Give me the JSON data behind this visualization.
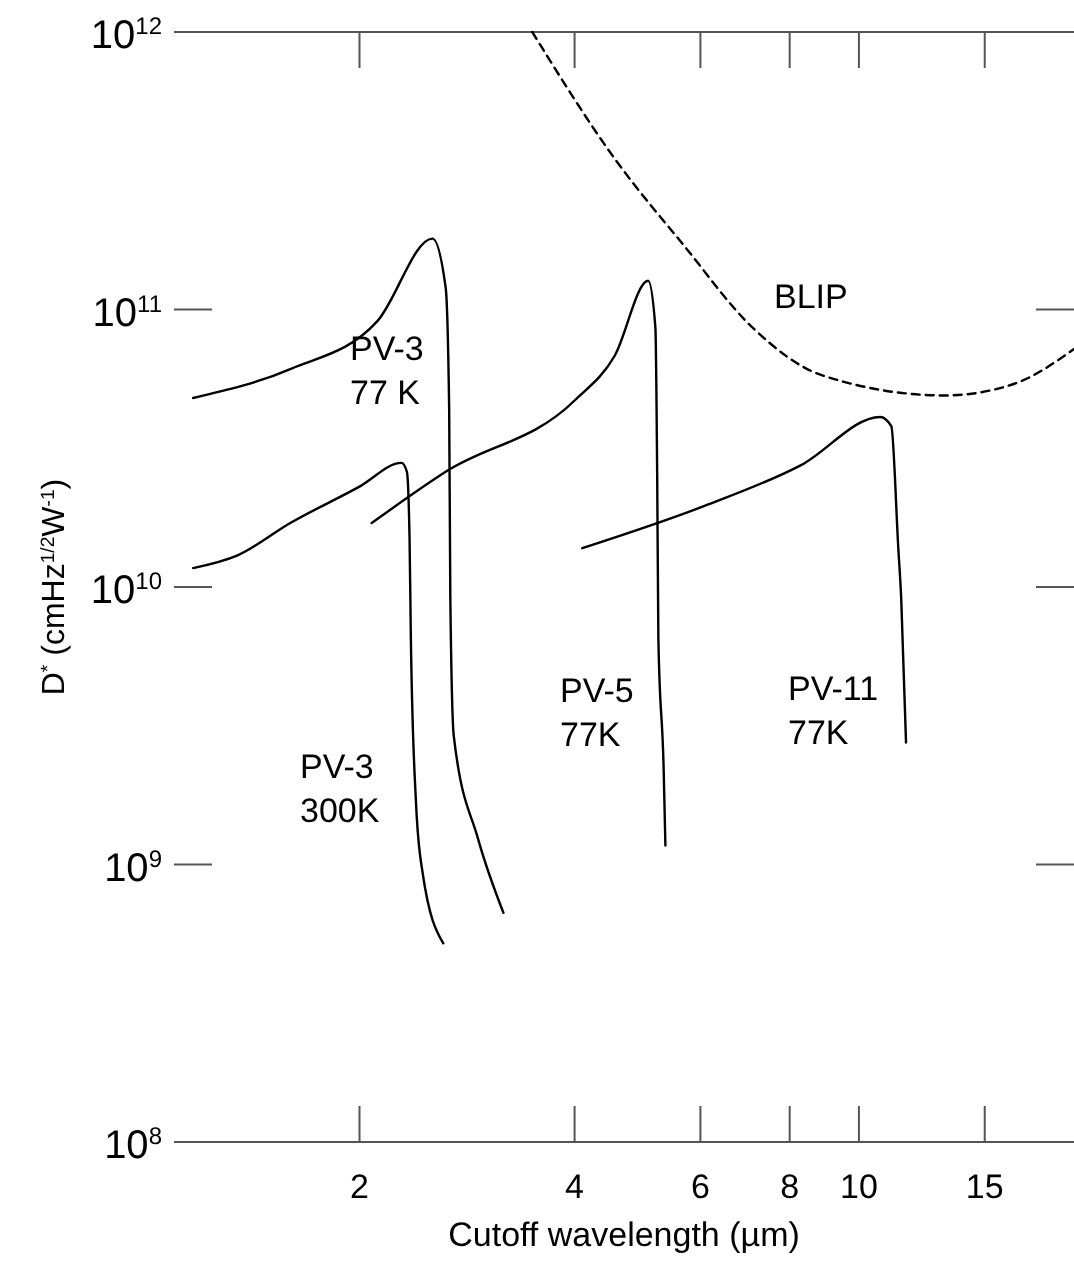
{
  "chart_data": {
    "type": "line",
    "xlabel": "Cutoff wavelength (µm)",
    "ylabel": "D$^{*}$ (cmHz$^{1/2}$W$^{-1}$)",
    "log": "xy",
    "grid": false,
    "marker": "none",
    "xlim": [
      1.1,
      20
    ],
    "ylim": [
      100000000.0,
      1000000000000.0
    ],
    "xticks": [
      2,
      4,
      6,
      8,
      10,
      15
    ],
    "yticks": [
      {
        "value": 100000000.0,
        "label": "10$^{8}$"
      },
      {
        "value": 1000000000.0,
        "label": "10$^{9}$"
      },
      {
        "value": 10000000000.0,
        "label": "10$^{10}$"
      },
      {
        "value": 100000000000.0,
        "label": "10$^{11}$"
      },
      {
        "value": 1000000000000.0,
        "label": "10$^{12}$"
      }
    ],
    "series": [
      {
        "name": "PV-3\n77 K",
        "color": "#000000",
        "line_style": "solid",
        "x": [
          1.17,
          1.6,
          2.12,
          2.53,
          2.64,
          2.67,
          2.68,
          2.71,
          2.93,
          3.18
        ],
        "values": [
          48000000000.0,
          61000000000.0,
          91000000000.0,
          180000000000.0,
          120000000000.0,
          44000000000.0,
          9100000000.0,
          2900000000.0,
          1240000000.0,
          670000000.0
        ]
      },
      {
        "name": "PV-3\n300K",
        "color": "#000000",
        "line_style": "solid",
        "x": [
          1.17,
          1.35,
          1.6,
          2.0,
          2.29,
          2.33,
          2.35,
          2.36,
          2.4,
          2.45,
          2.62
        ],
        "values": [
          11700000000.0,
          13000000000.0,
          17000000000.0,
          23000000000.0,
          28000000000.0,
          26000000000.0,
          15000000000.0,
          6500000000.0,
          1650000000.0,
          940000000.0,
          520000000.0
        ]
      },
      {
        "name": "PV-5\n77K",
        "color": "#000000",
        "line_style": "solid",
        "x": [
          2.08,
          2.64,
          4.0,
          4.55,
          5.07,
          5.19,
          5.22,
          5.24,
          5.33,
          5.36
        ],
        "values": [
          17000000000.0,
          26000000000.0,
          47000000000.0,
          68000000000.0,
          127000000000.0,
          86000000000.0,
          25000000000.0,
          6500000000.0,
          2200000000.0,
          1170000000.0
        ]
      },
      {
        "name": "PV-11\n77K",
        "color": "#000000",
        "line_style": "solid",
        "x": [
          4.1,
          6.08,
          8.3,
          10.71,
          11.1,
          11.35,
          11.46,
          11.64
        ],
        "values": [
          13800000000.0,
          19600000000.0,
          27500000000.0,
          41000000000.0,
          38000000000.0,
          14000000000.0,
          9100000000.0,
          2750000000.0
        ]
      },
      {
        "name": "BLIP",
        "color": "#000000",
        "line_style": "dashed",
        "x": [
          3.49,
          4.55,
          5.69,
          7.1,
          8.87,
          13.2,
          16.5,
          20
        ],
        "values": [
          1000000000000.0,
          350000000000.0,
          170000000000.0,
          86000000000.0,
          58000000000.0,
          49000000000.0,
          54000000000.0,
          72000000000.0
        ]
      }
    ]
  }
}
